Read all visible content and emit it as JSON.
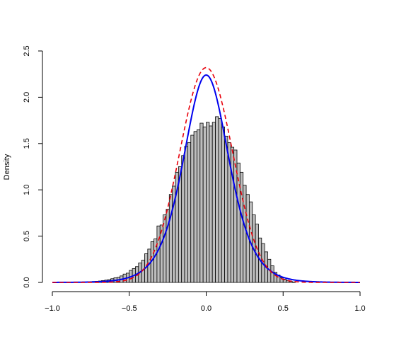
{
  "chart_data": {
    "type": "bar",
    "title": "",
    "xlabel": "",
    "ylabel": "Density",
    "xlim": [
      -1.0,
      1.0
    ],
    "ylim": [
      0,
      2.5
    ],
    "grid": false,
    "legend": "none",
    "x_ticks": [
      -1.0,
      -0.5,
      0.0,
      0.5,
      1.0
    ],
    "x_tick_labels": [
      "−1.0",
      "−0.5",
      "0.0",
      "0.5",
      "1.0"
    ],
    "y_ticks": [
      0.0,
      0.5,
      1.0,
      1.5,
      2.0,
      2.5
    ],
    "y_tick_labels": [
      "0.0",
      "0.5",
      "1.0",
      "1.5",
      "2.0",
      "2.5"
    ],
    "histogram": {
      "bin_width": 0.02,
      "bin_starts": [
        -0.8,
        -0.78,
        -0.76,
        -0.74,
        -0.72,
        -0.7,
        -0.68,
        -0.66,
        -0.64,
        -0.62,
        -0.6,
        -0.58,
        -0.56,
        -0.54,
        -0.52,
        -0.5,
        -0.48,
        -0.46,
        -0.44,
        -0.42,
        -0.4,
        -0.38,
        -0.36,
        -0.34,
        -0.32,
        -0.3,
        -0.28,
        -0.26,
        -0.24,
        -0.22,
        -0.2,
        -0.18,
        -0.16,
        -0.14,
        -0.12,
        -0.1,
        -0.08,
        -0.06,
        -0.04,
        -0.02,
        0.0,
        0.02,
        0.04,
        0.06,
        0.08,
        0.1,
        0.12,
        0.14,
        0.16,
        0.18,
        0.2,
        0.22,
        0.24,
        0.26,
        0.28,
        0.3,
        0.32,
        0.34,
        0.36,
        0.38,
        0.4,
        0.42,
        0.44,
        0.46,
        0.48,
        0.5,
        0.52,
        0.54,
        0.56
      ],
      "densities": [
        0.005,
        0.005,
        0.008,
        0.01,
        0.012,
        0.015,
        0.02,
        0.025,
        0.03,
        0.04,
        0.05,
        0.055,
        0.07,
        0.09,
        0.1,
        0.13,
        0.15,
        0.17,
        0.21,
        0.24,
        0.31,
        0.36,
        0.44,
        0.47,
        0.61,
        0.62,
        0.73,
        0.79,
        0.95,
        1.04,
        1.19,
        1.25,
        1.37,
        1.47,
        1.51,
        1.59,
        1.63,
        1.65,
        1.72,
        1.68,
        1.73,
        1.69,
        1.73,
        1.79,
        1.77,
        1.68,
        1.58,
        1.51,
        1.46,
        1.43,
        1.29,
        1.19,
        1.05,
        0.95,
        0.87,
        0.73,
        0.63,
        0.48,
        0.42,
        0.33,
        0.25,
        0.18,
        0.11,
        0.08,
        0.05,
        0.035,
        0.02,
        0.01,
        0.005
      ]
    },
    "series": [
      {
        "kind": "curve",
        "color": "#0000ee",
        "dash": "solid",
        "width": 2,
        "peak": 2.24,
        "scale": 0.0985,
        "family": "logistic"
      },
      {
        "kind": "curve",
        "color": "#e8000b",
        "dash": "dashed",
        "width": 1.6,
        "peak": 2.32,
        "scale": 0.172,
        "family": "normal"
      }
    ],
    "bar_fill": "#bebebe",
    "bar_stroke": "#000000"
  }
}
